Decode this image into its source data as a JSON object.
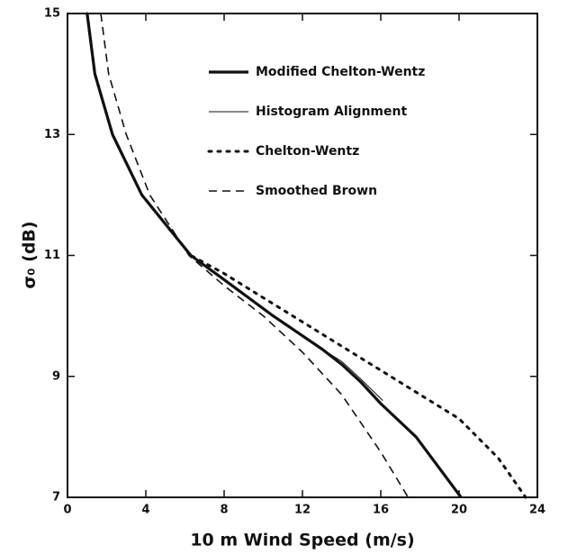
{
  "chart_data": {
    "type": "line",
    "x_label": "10 m Wind Speed (m/s)",
    "y_label": "σ₀ (dB)",
    "xlim": [
      0,
      24
    ],
    "xticks": [
      0,
      4,
      8,
      12,
      16,
      20,
      24
    ],
    "ylim": [
      7,
      15
    ],
    "yticks": [
      7,
      9,
      11,
      13,
      15
    ],
    "legend": "upper right",
    "series": [
      {
        "name": "Modified Chelton-Wentz",
        "color": "#111",
        "line_style": "solid",
        "width": 3.2,
        "x": [
          1.0,
          1.4,
          2.3,
          3.8,
          6.3,
          8.0,
          10.5,
          13.0,
          14.0,
          15.0,
          16.0,
          17.8,
          20.1
        ],
        "values": [
          15,
          14,
          13,
          12,
          11,
          10.6,
          10,
          9.45,
          9.2,
          8.9,
          8.55,
          8,
          7
        ]
      },
      {
        "name": "Histogram Alignment",
        "color": "#111",
        "line_style": "solid",
        "width": 1,
        "x": [
          1.0,
          1.4,
          2.3,
          3.8,
          6.3,
          8.0,
          10.5,
          13.0,
          14.0,
          15.0,
          16.1
        ],
        "values": [
          15,
          14,
          13,
          12,
          11,
          10.6,
          10,
          9.45,
          9.25,
          8.95,
          8.6
        ]
      },
      {
        "name": "Chelton-Wentz",
        "color": "#111",
        "line_style": "dotted",
        "width": 3,
        "x": [
          1.0,
          1.4,
          2.3,
          3.8,
          6.3,
          8,
          10,
          12,
          14,
          16,
          18,
          20,
          22,
          23.4
        ],
        "values": [
          15,
          14,
          13,
          12,
          11,
          10.7,
          10.3,
          9.9,
          9.5,
          9.1,
          8.7,
          8.3,
          7.65,
          7
        ]
      },
      {
        "name": "Smoothed Brown",
        "color": "#111",
        "line_style": "dashed",
        "width": 1.6,
        "x": [
          1.7,
          2.1,
          3.0,
          4.2,
          6.2,
          8,
          10,
          12,
          14,
          16,
          17.4
        ],
        "values": [
          15,
          14,
          13,
          12,
          11,
          10.5,
          10.0,
          9.4,
          8.7,
          7.75,
          7
        ]
      }
    ]
  }
}
